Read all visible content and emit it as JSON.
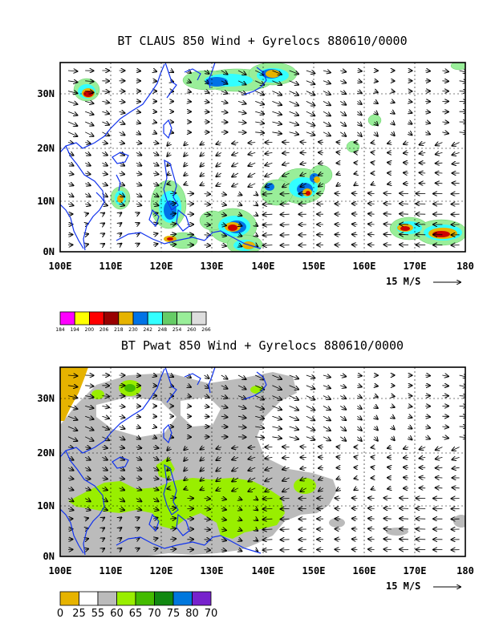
{
  "panels": [
    {
      "title": "BT CLAUS 850 Wind + Gyrelocs 880610/0000",
      "scale_label": "15 M/S",
      "lon_labels": [
        "100E",
        "110E",
        "120E",
        "130E",
        "140E",
        "150E",
        "160E",
        "170E",
        "180"
      ],
      "lat_labels": [
        "0N",
        "10N",
        "20N",
        "30N"
      ],
      "legend": {
        "colors": [
          "#ff00ff",
          "#ffff00",
          "#ff0000",
          "#990000",
          "#e6b300",
          "#0073e6",
          "#33ffff",
          "#66cc66",
          "#99ee99",
          "#dddddd"
        ],
        "labels": [
          "184",
          "194",
          "200",
          "206",
          "218",
          "230",
          "242",
          "248",
          "254",
          "260",
          "266"
        ]
      }
    },
    {
      "title": "BT Pwat 850 Wind + Gyrelocs 880610/0000",
      "scale_label": "15 M/S",
      "lon_labels": [
        "100E",
        "110E",
        "120E",
        "130E",
        "140E",
        "150E",
        "160E",
        "170E",
        "180"
      ],
      "lat_labels": [
        "0N",
        "10N",
        "20N",
        "30N"
      ],
      "legend": {
        "colors": [
          "#e6b300",
          "#ffffff",
          "#bbbbbb",
          "#99ee00",
          "#44bb00",
          "#118811",
          "#0077dd",
          "#7722cc"
        ],
        "labels": [
          "0",
          "25",
          "55",
          "60",
          "65",
          "70",
          "75",
          "80",
          "70"
        ]
      }
    }
  ]
}
